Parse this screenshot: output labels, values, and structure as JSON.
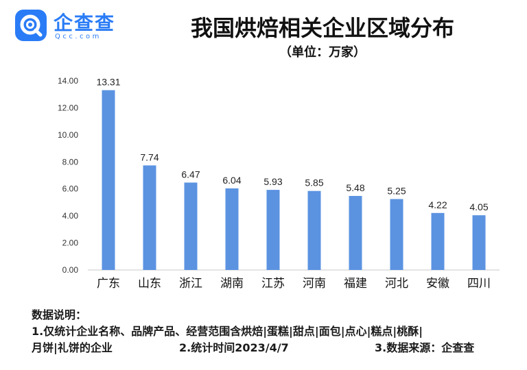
{
  "logo": {
    "name": "企查查",
    "sub": "Qcc.com",
    "brand_color": "#2a7cf6",
    "icon": "qcc-logo-icon"
  },
  "chart_data": {
    "type": "bar",
    "title": "我国烘焙相关企业区域分布",
    "subtitle": "（单位：万家）",
    "categories": [
      "广东",
      "山东",
      "浙江",
      "湖南",
      "江苏",
      "河南",
      "福建",
      "河北",
      "安徽",
      "四川"
    ],
    "values": [
      13.31,
      7.74,
      6.47,
      6.04,
      5.93,
      5.85,
      5.48,
      5.25,
      4.22,
      4.05
    ],
    "value_labels": [
      "13.31",
      "7.74",
      "6.47",
      "6.04",
      "5.93",
      "5.85",
      "5.48",
      "5.25",
      "4.22",
      "4.05"
    ],
    "yticks": [
      "0.00",
      "2.00",
      "4.00",
      "6.00",
      "8.00",
      "10.00",
      "12.00",
      "14.00"
    ],
    "ylim": [
      0,
      14
    ],
    "xlabel": "",
    "ylabel": "",
    "grid": false,
    "bar_color": "#5b93e1"
  },
  "notes": {
    "heading": "数据说明：",
    "line1": "1.仅统计企业名称、品牌产品、经营范围含烘焙|蛋糕|甜点|面包|点心|糕点|桃酥|",
    "line2": "月饼|礼饼的企业",
    "line2_b": "2.统计时间2023/4/7",
    "line2_c": "3.数据来源：企查查"
  }
}
